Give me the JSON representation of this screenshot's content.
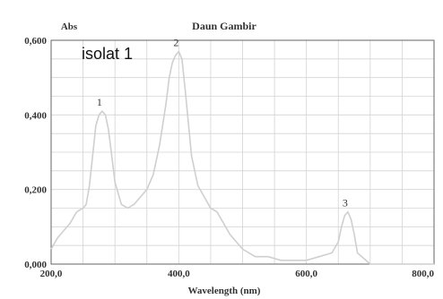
{
  "chart_data": {
    "type": "line",
    "title": "Daun Gambir",
    "annotation": "isolat 1",
    "ylabel": "Abs",
    "xlabel": "Wavelength (nm)",
    "xlim": [
      200,
      800
    ],
    "ylim": [
      0,
      0.6
    ],
    "x_ticks": [
      "200,0",
      "400,0",
      "600,0",
      "800,0"
    ],
    "y_ticks": [
      "0,000",
      "0,200",
      "0,400",
      "0,600"
    ],
    "grid": true,
    "line_color": "#cfcfcf",
    "peaks": [
      {
        "label": "1",
        "x": 280,
        "y": 0.41
      },
      {
        "label": "2",
        "x": 400,
        "y": 0.57
      },
      {
        "label": "3",
        "x": 665,
        "y": 0.14
      }
    ],
    "series": [
      {
        "x": [
          200,
          210,
          220,
          230,
          240,
          250,
          255,
          260,
          265,
          270,
          275,
          280,
          285,
          290,
          295,
          300,
          310,
          320,
          330,
          340,
          350,
          360,
          370,
          380,
          385,
          390,
          395,
          400,
          405,
          410,
          415,
          420,
          430,
          440,
          450,
          460,
          470,
          480,
          490,
          500,
          520,
          540,
          560,
          580,
          600,
          620,
          640,
          650,
          655,
          660,
          665,
          670,
          675,
          680,
          700,
          750,
          800
        ],
        "y": [
          0.04,
          0.07,
          0.09,
          0.11,
          0.14,
          0.15,
          0.16,
          0.21,
          0.29,
          0.37,
          0.4,
          0.41,
          0.4,
          0.36,
          0.29,
          0.22,
          0.16,
          0.15,
          0.16,
          0.18,
          0.2,
          0.24,
          0.32,
          0.43,
          0.5,
          0.54,
          0.56,
          0.57,
          0.55,
          0.47,
          0.38,
          0.29,
          0.21,
          0.18,
          0.15,
          0.14,
          0.11,
          0.08,
          0.06,
          0.04,
          0.02,
          0.02,
          0.01,
          0.01,
          0.01,
          0.02,
          0.03,
          0.06,
          0.1,
          0.13,
          0.14,
          0.12,
          0.08,
          0.03,
          0.0,
          0.0,
          0.0
        ]
      }
    ]
  }
}
